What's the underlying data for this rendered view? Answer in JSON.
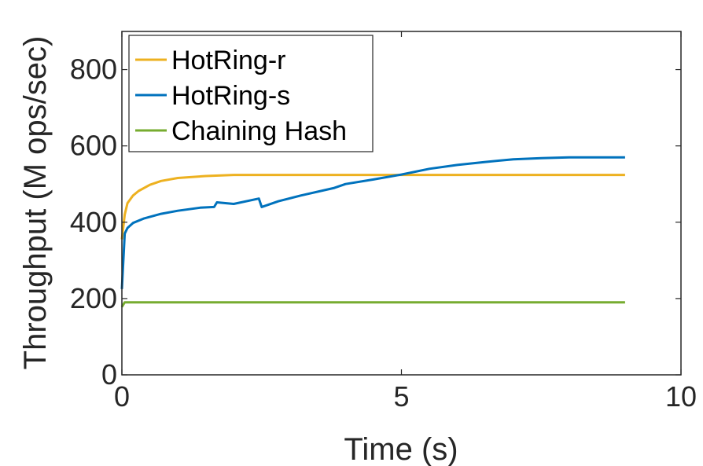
{
  "chart_data": {
    "type": "line",
    "title": "",
    "xlabel": "Time (s)",
    "ylabel": "Throughput (M ops/sec)",
    "xlim": [
      0,
      10
    ],
    "ylim": [
      0,
      900
    ],
    "xticks": [
      0,
      5,
      10
    ],
    "yticks": [
      0,
      200,
      400,
      600,
      800
    ],
    "xtick_labels": [
      "0",
      "5",
      "10"
    ],
    "ytick_labels": [
      "0",
      "200",
      "400",
      "600",
      "800"
    ],
    "grid": false,
    "legend_position": "top-left",
    "series": [
      {
        "name": "HotRing-r",
        "color": "#EDB120",
        "x": [
          0,
          0.05,
          0.1,
          0.2,
          0.3,
          0.5,
          0.7,
          1.0,
          1.5,
          2.0,
          3.0,
          4.0,
          5.0,
          6.0,
          7.0,
          8.0,
          9.0
        ],
        "y": [
          355,
          420,
          450,
          470,
          482,
          498,
          508,
          516,
          521,
          524,
          524,
          524,
          524,
          524,
          524,
          524,
          524
        ]
      },
      {
        "name": "HotRing-s",
        "color": "#0072BD",
        "x": [
          0,
          0.05,
          0.1,
          0.2,
          0.4,
          0.7,
          1.0,
          1.4,
          1.65,
          1.7,
          2.0,
          2.45,
          2.5,
          2.8,
          3.2,
          3.8,
          4.0,
          4.5,
          5.0,
          5.5,
          6.0,
          6.5,
          7.0,
          7.5,
          8.0,
          8.5,
          9.0
        ],
        "y": [
          225,
          370,
          385,
          398,
          410,
          422,
          430,
          438,
          440,
          452,
          448,
          462,
          440,
          455,
          470,
          490,
          500,
          512,
          525,
          540,
          550,
          558,
          565,
          568,
          570,
          570,
          570
        ]
      },
      {
        "name": "Chaining Hash",
        "color": "#77AC30",
        "x": [
          0,
          0.05,
          1,
          2,
          3,
          4,
          5,
          6,
          7,
          8,
          9
        ],
        "y": [
          178,
          190,
          190,
          190,
          190,
          190,
          190,
          190,
          190,
          190,
          190
        ]
      }
    ]
  }
}
